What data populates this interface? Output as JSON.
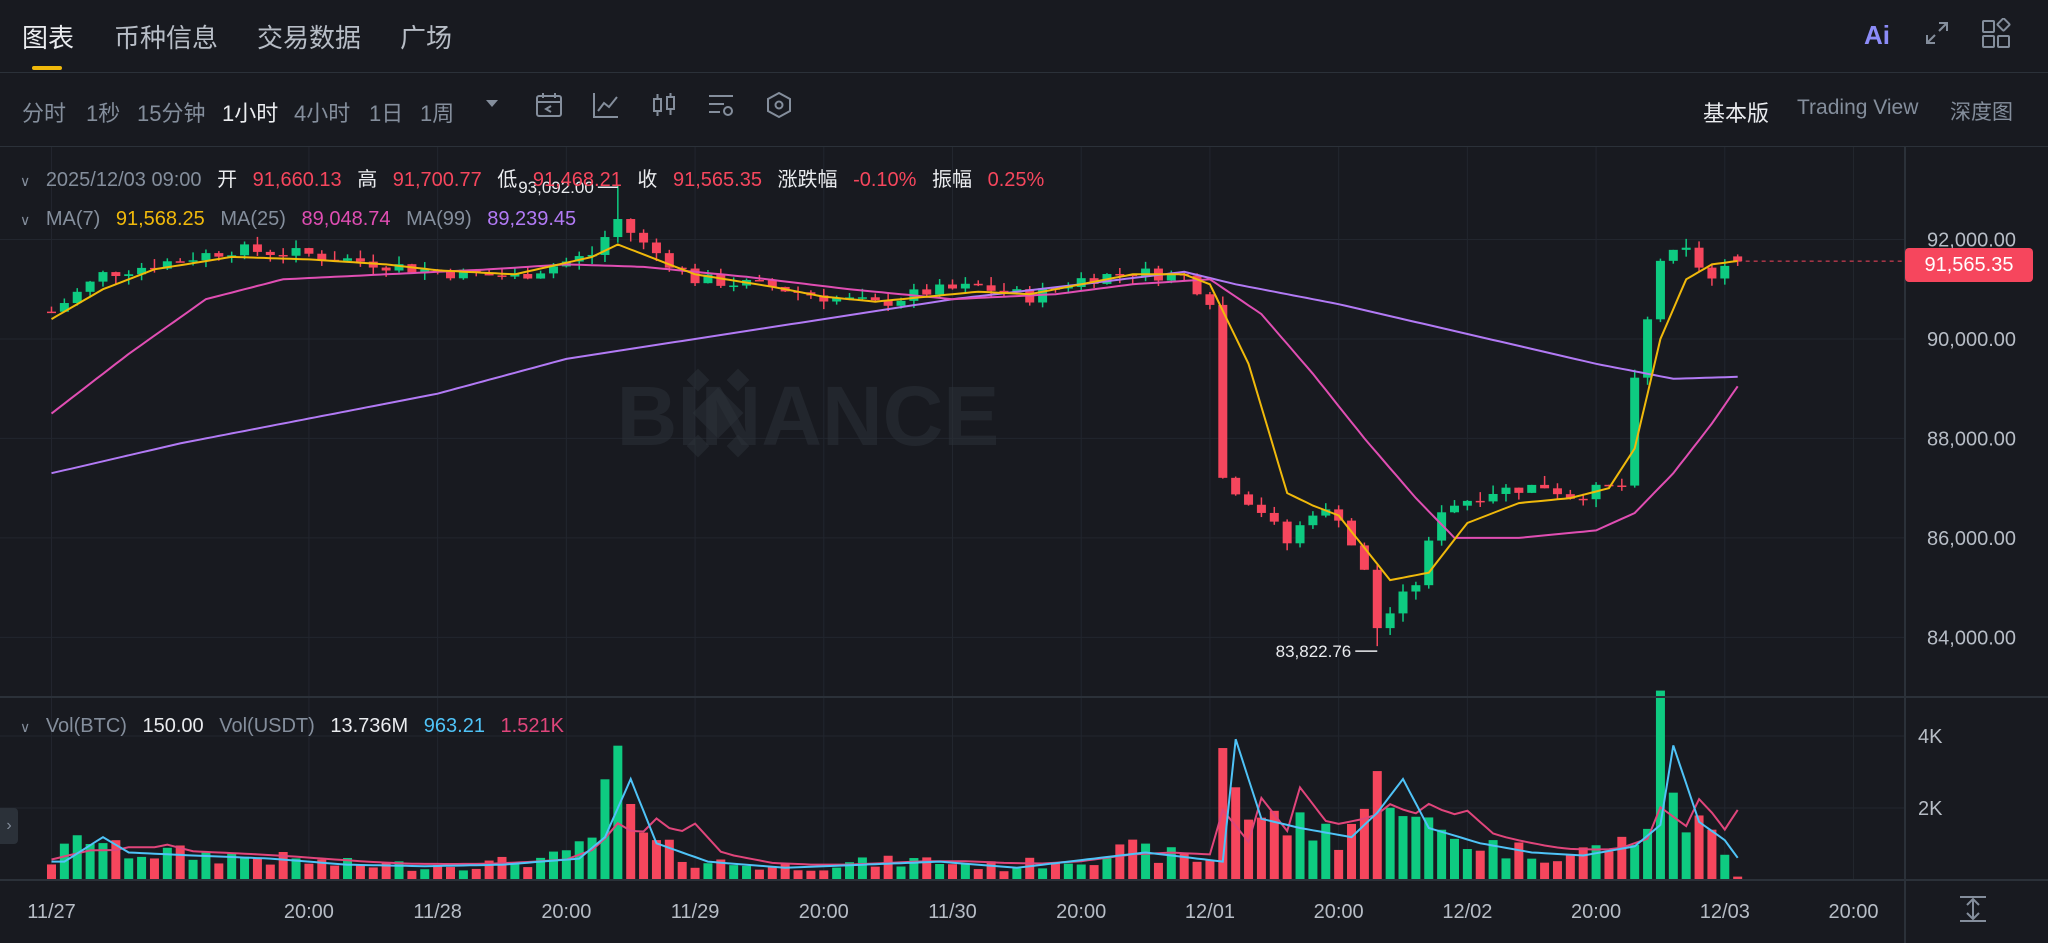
{
  "tabs": [
    {
      "label": "图表",
      "active": true
    },
    {
      "label": "币种信息",
      "active": false
    },
    {
      "label": "交易数据",
      "active": false
    },
    {
      "label": "广场",
      "active": false
    }
  ],
  "top_icons": {
    "ai_label": "Ai",
    "expand_icon": "expand-icon",
    "layout_icon": "layout-grid-icon"
  },
  "timeframes": [
    {
      "label": "分时",
      "active": false
    },
    {
      "label": "1秒",
      "active": false
    },
    {
      "label": "15分钟",
      "active": false
    },
    {
      "label": "1小时",
      "active": true
    },
    {
      "label": "4小时",
      "active": false
    },
    {
      "label": "1日",
      "active": false
    },
    {
      "label": "1周",
      "active": false
    }
  ],
  "tools": [
    "dropdown-caret-icon",
    "calendar-icon",
    "indicator-icon",
    "candle-type-icon",
    "settings-icon",
    "hexagon-icon"
  ],
  "versions": [
    {
      "label": "基本版",
      "active": true
    },
    {
      "label": "Trading View",
      "active": false
    },
    {
      "label": "深度图",
      "active": false
    }
  ],
  "ohlc": {
    "datetime": "2025/12/03 09:00",
    "open_label": "开",
    "open": "91,660.13",
    "high_label": "高",
    "high": "91,700.77",
    "low_label": "低",
    "low": "91,468.21",
    "close_label": "收",
    "close": "91,565.35",
    "change_label": "涨跌幅",
    "change": "-0.10%",
    "amp_label": "振幅",
    "amp": "0.25%"
  },
  "ma_legend": {
    "ma7_label": "MA(7)",
    "ma7": "91,568.25",
    "ma25_label": "MA(25)",
    "ma25": "89,048.74",
    "ma99_label": "MA(99)",
    "ma99": "89,239.45"
  },
  "vol_legend": {
    "btc_label": "Vol(BTC)",
    "btc": "150.00",
    "usdt_label": "Vol(USDT)",
    "usdt": "13.736M",
    "ma_a": "963.21",
    "ma_b": "1.521K"
  },
  "current_price": "91,565.35",
  "watermark": "BINANCE",
  "colors": {
    "up": "#0ECB81",
    "down": "#F6465D",
    "ma7": "#F0B90B",
    "ma25": "#E04EB3",
    "ma99": "#B27AF5",
    "vol_ma_a": "#4FC3F7",
    "vol_ma_b": "#E0457B",
    "accent": "#F0B90B",
    "background": "#181A20"
  },
  "chart_data": {
    "type": "candlestick",
    "interval": "1h",
    "ylim": [
      82800,
      93800
    ],
    "yticks": [
      84000,
      86000,
      88000,
      90000,
      92000
    ],
    "ytick_labels": [
      "84,000.00",
      "86,000.00",
      "88,000.00",
      "90,000.00",
      "92,000.00"
    ],
    "vol_ylim": [
      0,
      5000
    ],
    "vol_yticks": [
      2000,
      4000
    ],
    "vol_ytick_labels": [
      "2K",
      "4K"
    ],
    "xticks": [
      {
        "h": -10,
        "label": "11/27"
      },
      {
        "h": 10,
        "label": "20:00"
      },
      {
        "h": 20,
        "label": "11/28"
      },
      {
        "h": 30,
        "label": "20:00"
      },
      {
        "h": 40,
        "label": "11/29"
      },
      {
        "h": 50,
        "label": "20:00"
      },
      {
        "h": 60,
        "label": "11/30"
      },
      {
        "h": 70,
        "label": "20:00"
      },
      {
        "h": 80,
        "label": "12/01"
      },
      {
        "h": 90,
        "label": "20:00"
      },
      {
        "h": 100,
        "label": "12/02"
      },
      {
        "h": 110,
        "label": "20:00"
      },
      {
        "h": 120,
        "label": "12/03"
      },
      {
        "h": 130,
        "label": "20:00"
      }
    ],
    "high_marker": {
      "label": "93,092.00",
      "h": 34,
      "value": 93092.0
    },
    "low_marker": {
      "label": "83,822.76",
      "h": 93,
      "value": 83822.76
    },
    "series_points": {
      "close": [
        [
          -10,
          90550
        ],
        [
          -6,
          91300
        ],
        [
          -2,
          91500
        ],
        [
          4,
          91800
        ],
        [
          10,
          91700
        ],
        [
          16,
          91500
        ],
        [
          20,
          91350
        ],
        [
          26,
          91250
        ],
        [
          32,
          91700
        ],
        [
          34,
          92400
        ],
        [
          36,
          91900
        ],
        [
          40,
          91200
        ],
        [
          46,
          91050
        ],
        [
          50,
          90850
        ],
        [
          54,
          90700
        ],
        [
          58,
          90950
        ],
        [
          62,
          91050
        ],
        [
          66,
          90850
        ],
        [
          70,
          91200
        ],
        [
          74,
          91350
        ],
        [
          78,
          91250
        ],
        [
          80,
          90800
        ],
        [
          81,
          87200
        ],
        [
          84,
          86550
        ],
        [
          86,
          85900
        ],
        [
          88,
          86550
        ],
        [
          90,
          86450
        ],
        [
          92,
          85300
        ],
        [
          93,
          84200
        ],
        [
          96,
          85100
        ],
        [
          98,
          86600
        ],
        [
          102,
          86950
        ],
        [
          106,
          87050
        ],
        [
          108,
          86850
        ],
        [
          112,
          87050
        ],
        [
          113,
          89100
        ],
        [
          115,
          91600
        ],
        [
          117,
          91750
        ],
        [
          119,
          91200
        ],
        [
          121,
          91565
        ]
      ],
      "ma7": [
        [
          -10,
          90400
        ],
        [
          -6,
          91000
        ],
        [
          -2,
          91400
        ],
        [
          4,
          91650
        ],
        [
          10,
          91600
        ],
        [
          16,
          91500
        ],
        [
          20,
          91380
        ],
        [
          26,
          91300
        ],
        [
          32,
          91650
        ],
        [
          34,
          91900
        ],
        [
          36,
          91700
        ],
        [
          40,
          91300
        ],
        [
          46,
          91050
        ],
        [
          50,
          90850
        ],
        [
          54,
          90750
        ],
        [
          58,
          90850
        ],
        [
          62,
          90950
        ],
        [
          66,
          90900
        ],
        [
          70,
          91100
        ],
        [
          74,
          91300
        ],
        [
          78,
          91300
        ],
        [
          80,
          91100
        ],
        [
          83,
          89500
        ],
        [
          86,
          86900
        ],
        [
          88,
          86650
        ],
        [
          90,
          86450
        ],
        [
          92,
          85800
        ],
        [
          94,
          85150
        ],
        [
          97,
          85300
        ],
        [
          100,
          86300
        ],
        [
          104,
          86700
        ],
        [
          108,
          86800
        ],
        [
          111,
          87000
        ],
        [
          113,
          87800
        ],
        [
          115,
          90000
        ],
        [
          117,
          91200
        ],
        [
          119,
          91500
        ],
        [
          121,
          91568
        ]
      ],
      "ma25": [
        [
          -10,
          88500
        ],
        [
          -4,
          89700
        ],
        [
          2,
          90800
        ],
        [
          8,
          91200
        ],
        [
          16,
          91300
        ],
        [
          24,
          91400
        ],
        [
          30,
          91500
        ],
        [
          36,
          91450
        ],
        [
          44,
          91250
        ],
        [
          52,
          91000
        ],
        [
          60,
          90800
        ],
        [
          68,
          90900
        ],
        [
          74,
          91100
        ],
        [
          80,
          91200
        ],
        [
          84,
          90500
        ],
        [
          88,
          89300
        ],
        [
          92,
          88000
        ],
        [
          96,
          86800
        ],
        [
          99,
          86000
        ],
        [
          104,
          86000
        ],
        [
          110,
          86150
        ],
        [
          113,
          86500
        ],
        [
          116,
          87300
        ],
        [
          119,
          88300
        ],
        [
          121,
          89049
        ]
      ],
      "ma99": [
        [
          -10,
          87300
        ],
        [
          0,
          87900
        ],
        [
          10,
          88400
        ],
        [
          20,
          88900
        ],
        [
          30,
          89600
        ],
        [
          40,
          90000
        ],
        [
          50,
          90400
        ],
        [
          60,
          90800
        ],
        [
          70,
          91100
        ],
        [
          78,
          91350
        ],
        [
          82,
          91100
        ],
        [
          90,
          90700
        ],
        [
          100,
          90100
        ],
        [
          110,
          89500
        ],
        [
          116,
          89200
        ],
        [
          121,
          89239
        ]
      ]
    },
    "volume_points": [
      [
        -10,
        600
      ],
      [
        -7,
        1400
      ],
      [
        -5,
        900
      ],
      [
        0,
        800
      ],
      [
        6,
        700
      ],
      [
        12,
        500
      ],
      [
        18,
        450
      ],
      [
        24,
        500
      ],
      [
        30,
        700
      ],
      [
        32,
        1400
      ],
      [
        34,
        3300
      ],
      [
        36,
        1200
      ],
      [
        40,
        600
      ],
      [
        46,
        400
      ],
      [
        52,
        500
      ],
      [
        58,
        600
      ],
      [
        64,
        400
      ],
      [
        70,
        700
      ],
      [
        74,
        900
      ],
      [
        80,
        600
      ],
      [
        81,
        4600
      ],
      [
        83,
        2000
      ],
      [
        86,
        1700
      ],
      [
        90,
        1400
      ],
      [
        92,
        2200
      ],
      [
        94,
        3300
      ],
      [
        96,
        1700
      ],
      [
        100,
        1200
      ],
      [
        104,
        900
      ],
      [
        108,
        800
      ],
      [
        112,
        1100
      ],
      [
        114,
        1800
      ],
      [
        115,
        4400
      ],
      [
        117,
        1900
      ],
      [
        119,
        1300
      ],
      [
        121,
        150
      ]
    ]
  }
}
